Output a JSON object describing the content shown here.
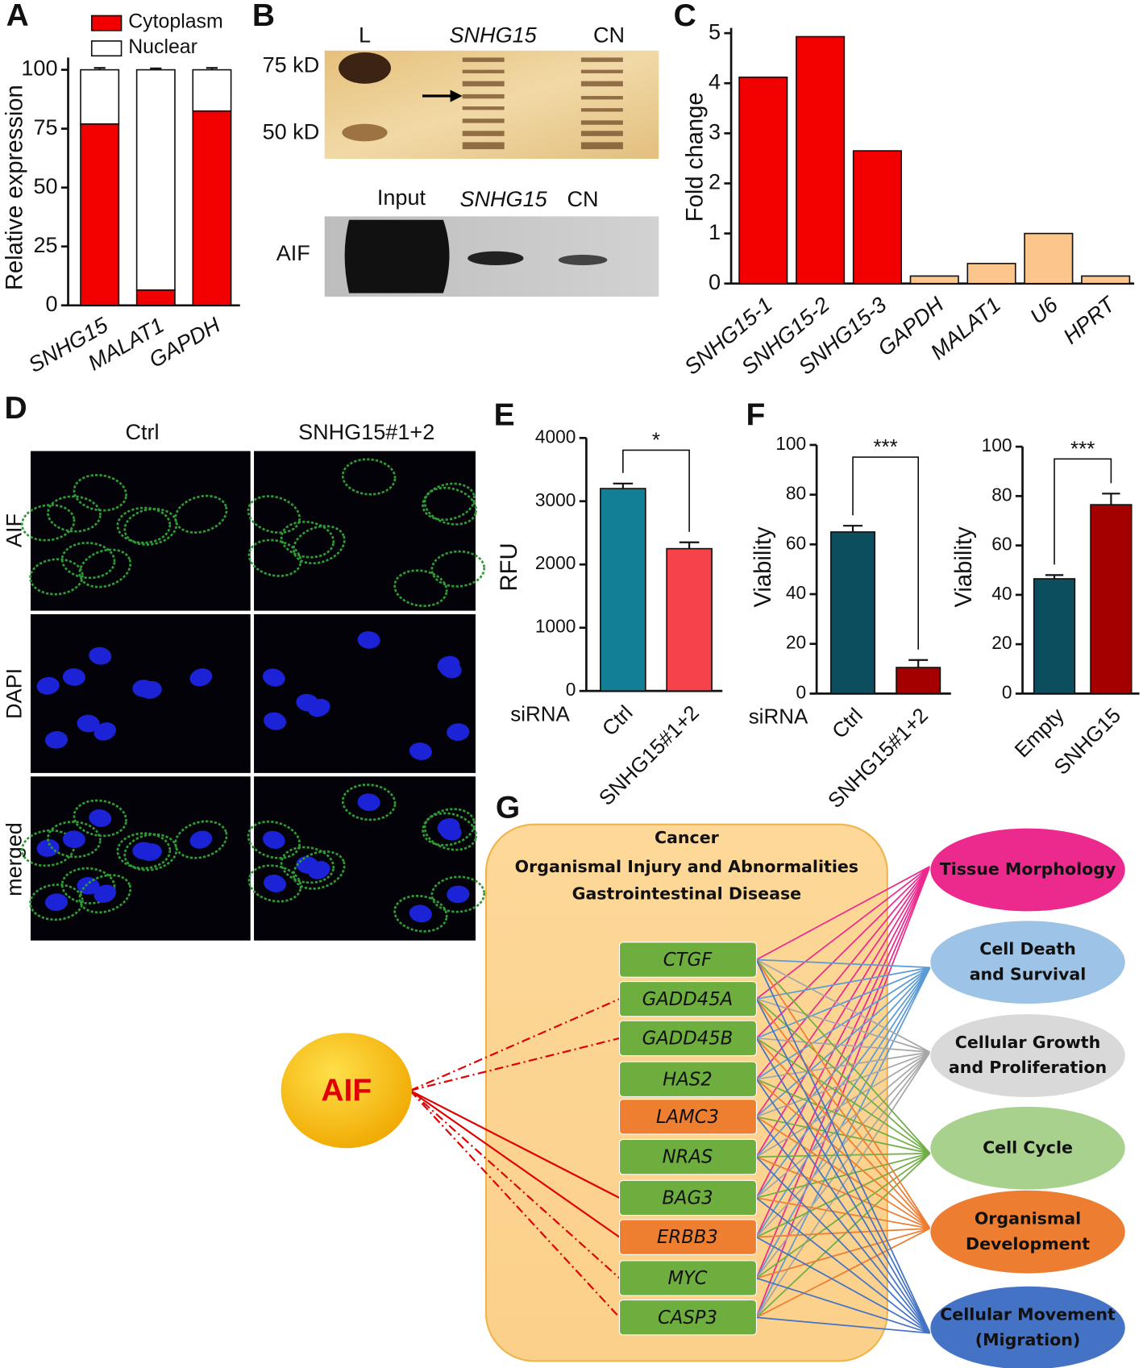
{
  "chart_data": [
    {
      "type": "bar",
      "panel": "A",
      "stacked": true,
      "ylabel": "Relative expression",
      "categories": [
        "SNHG15",
        "MALAT1",
        "GAPDH"
      ],
      "series": [
        {
          "name": "Cytoplasm",
          "color": "#f20000",
          "values": [
            77,
            6.5,
            82.5
          ],
          "errors": [
            1,
            0.8,
            0.8
          ]
        },
        {
          "name": "Nuclear",
          "color": "#ffffff",
          "values": [
            23,
            93.5,
            17.5
          ],
          "errors": [
            0.8,
            0.6,
            0.8
          ]
        }
      ],
      "ylim": [
        0,
        100
      ],
      "yticks": [
        0,
        25,
        50,
        75,
        100
      ]
    },
    {
      "type": "bar",
      "panel": "C",
      "ylabel": "Fold change",
      "categories": [
        "SNHG15-1",
        "SNHG15-2",
        "SNHG15-3",
        "GAPDH",
        "MALAT1",
        "U6",
        "HPRT"
      ],
      "values": [
        4.12,
        4.93,
        2.65,
        0.15,
        0.4,
        1.0,
        0.15
      ],
      "colors": [
        "#f20000",
        "#f20000",
        "#f20000",
        "#fcc58c",
        "#fcc58c",
        "#fcc58c",
        "#fcc58c"
      ],
      "ylim": [
        0,
        5
      ],
      "yticks": [
        0,
        1,
        2,
        3,
        4,
        5
      ]
    },
    {
      "type": "bar",
      "panel": "E",
      "ylabel": "RFU",
      "xlabel": "siRNA",
      "annotation": "*",
      "categories": [
        "Ctrl",
        "SNHG15#1+2"
      ],
      "values": [
        3200,
        2250
      ],
      "errors": [
        80,
        100
      ],
      "colors": [
        "#137f96",
        "#f6424a"
      ],
      "ylim": [
        0,
        4000
      ],
      "yticks": [
        0,
        1000,
        2000,
        3000,
        4000
      ]
    },
    {
      "type": "bar",
      "panel": "F",
      "ylabel": "Viability",
      "xlabel": "siRNA",
      "annotation": "***",
      "categories": [
        "Ctrl",
        "SNHG15#1+2"
      ],
      "values": [
        65,
        10.5
      ],
      "errors": [
        2.5,
        3
      ],
      "colors": [
        "#0c4e5d",
        "#a50000"
      ],
      "ylim": [
        0,
        100
      ],
      "yticks": [
        0,
        20,
        40,
        60,
        80,
        100
      ]
    },
    {
      "type": "bar",
      "ylabel": "Viability",
      "annotation": "***",
      "categories": [
        "Empty",
        "SNHG15"
      ],
      "values": [
        46.5,
        76.5
      ],
      "errors": [
        1.5,
        4.5
      ],
      "colors": [
        "#0c4e5d",
        "#a50000"
      ],
      "ylim": [
        0,
        100
      ],
      "yticks": [
        0,
        20,
        40,
        60,
        80,
        100
      ]
    }
  ],
  "blot": {
    "panel": "B",
    "top_lanes": [
      "L",
      "SNHG15",
      "CN"
    ],
    "markers": [
      "75 kD",
      "50 kD"
    ],
    "bottom_lanes": [
      "Input",
      "SNHG15",
      "CN"
    ],
    "bottom_label": "AIF"
  },
  "microscopy": {
    "panel": "D",
    "columns": [
      "Ctrl",
      "SNHG15#1+2"
    ],
    "rows": [
      "AIF",
      "DAPI",
      "merged"
    ]
  },
  "network": {
    "panel": "G",
    "context": [
      "Cancer",
      "Organismal Injury and Abnormalities",
      "Gastrointestinal Disease"
    ],
    "source": "AIF",
    "genes": [
      {
        "label": "CTGF",
        "color": "#6eae3e"
      },
      {
        "label": "GADD45A",
        "color": "#6eae3e"
      },
      {
        "label": "GADD45B",
        "color": "#6eae3e"
      },
      {
        "label": "HAS2",
        "color": "#6eae3e"
      },
      {
        "label": "LAMC3",
        "color": "#ee7f30"
      },
      {
        "label": "NRAS",
        "color": "#6eae3e"
      },
      {
        "label": "BAG3",
        "color": "#6eae3e"
      },
      {
        "label": "ERBB3",
        "color": "#ee7f30"
      },
      {
        "label": "MYC",
        "color": "#6eae3e"
      },
      {
        "label": "CASP3",
        "color": "#6eae3e"
      }
    ],
    "functions": [
      {
        "lines": [
          "Tissue Morphology"
        ],
        "color": "#ec2a8e",
        "line_color": "#ec2a8e"
      },
      {
        "lines": [
          "Cell Death",
          "and Survival"
        ],
        "color": "#9dc3e6",
        "line_color": "#5b9bd5"
      },
      {
        "lines": [
          "Cellular Growth",
          "and Proliferation"
        ],
        "color": "#d9d9d9",
        "line_color": "#a6a6a6"
      },
      {
        "lines": [
          "Cell Cycle"
        ],
        "color": "#a9d18e",
        "line_color": "#70ad47"
      },
      {
        "lines": [
          "Organismal",
          "Development"
        ],
        "color": "#ed7d31",
        "line_color": "#ed7d31"
      },
      {
        "lines": [
          "Cellular Movement",
          "(Migration)"
        ],
        "color": "#4472c4",
        "line_color": "#4472c4"
      }
    ]
  }
}
